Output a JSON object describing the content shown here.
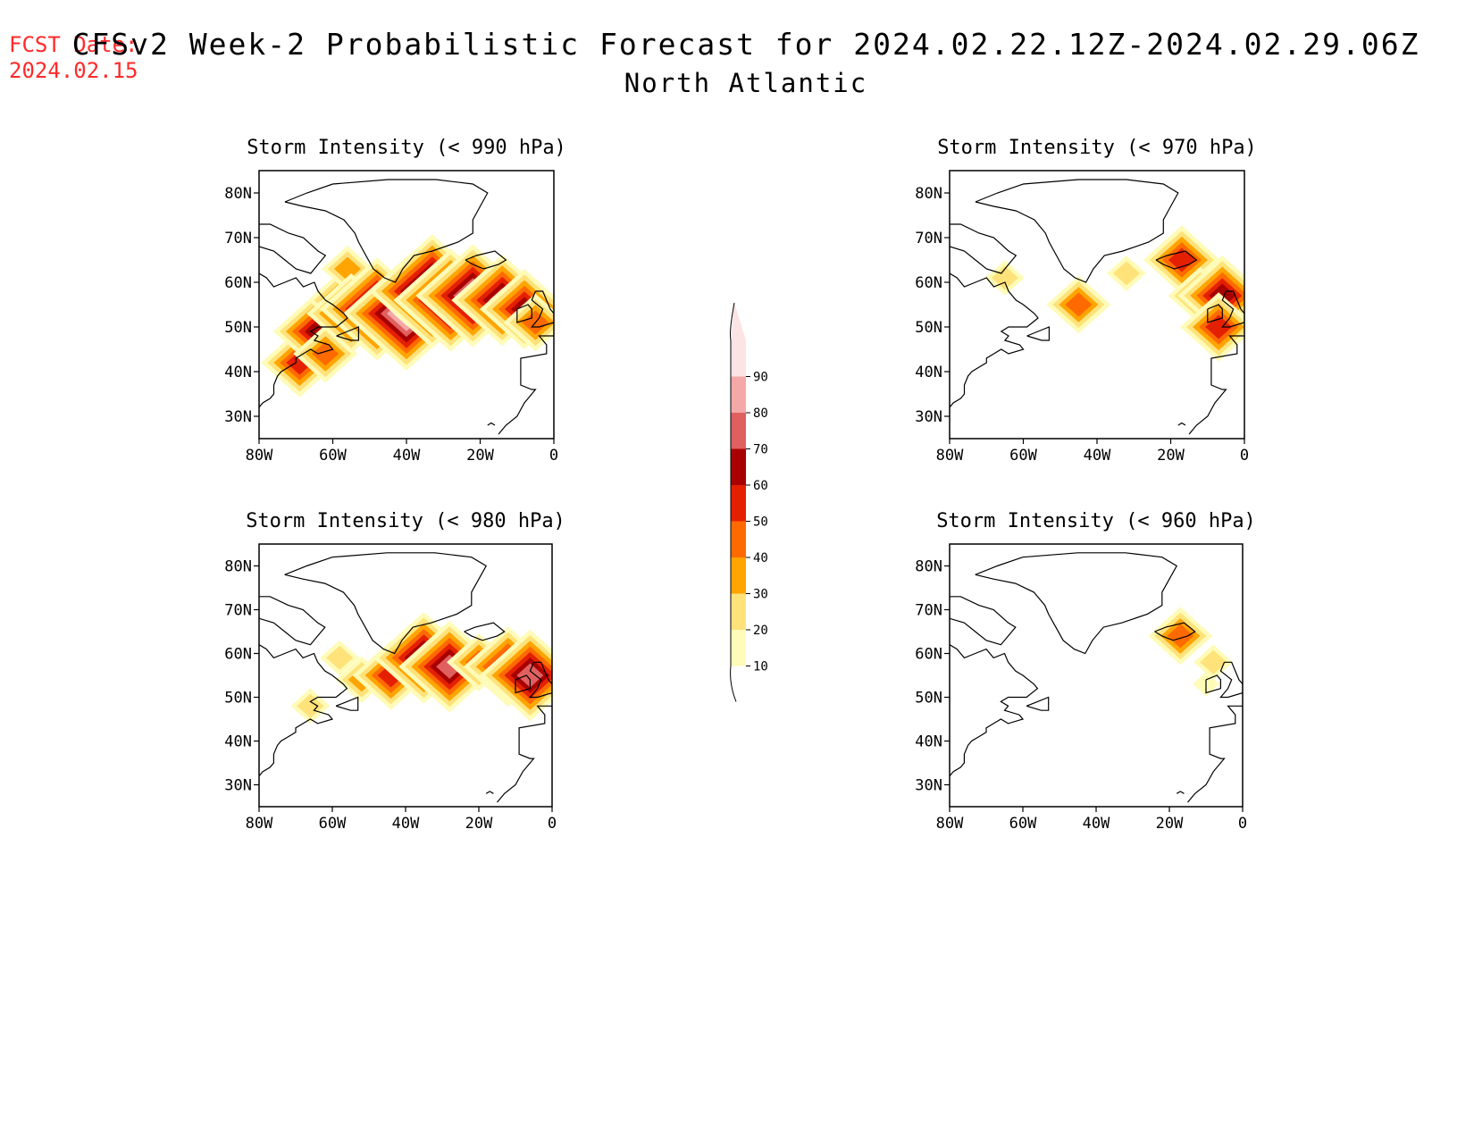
{
  "header": {
    "fcst_label": "FCST Date:",
    "fcst_date": "2024.02.15",
    "title": "CFSv2 Week-2 Probabilistic Forecast for 2024.02.22.12Z-2024.02.29.06Z",
    "subtitle": "North Atlantic"
  },
  "colorbar": {
    "levels": [
      10,
      20,
      30,
      40,
      50,
      60,
      70,
      80,
      90
    ],
    "labels": [
      "10",
      "20",
      "30",
      "40",
      "50",
      "60",
      "70",
      "80",
      "90"
    ],
    "colors": [
      "#fffbb8",
      "#ffe27a",
      "#ffa400",
      "#ff6a00",
      "#e42000",
      "#a80000",
      "#e06060",
      "#f4a8a8",
      "#fde4e4"
    ]
  },
  "axes": {
    "lon_ticks": [
      "80W",
      "60W",
      "40W",
      "20W",
      "0"
    ],
    "lat_ticks": [
      "80N",
      "70N",
      "60N",
      "50N",
      "40N",
      "30N"
    ]
  },
  "chart_data": [
    {
      "type": "heatmap",
      "title": "Storm Intensity (< 990 hPa)",
      "lon_range": [
        -80,
        0
      ],
      "lat_range": [
        25,
        85
      ],
      "patches": [
        {
          "lon": -69,
          "lat": 42,
          "value": 50
        },
        {
          "lon": -64,
          "lat": 49,
          "value": 60
        },
        {
          "lon": -62,
          "lat": 44,
          "value": 40
        },
        {
          "lon": -58,
          "lat": 56,
          "value": 40
        },
        {
          "lon": -56,
          "lat": 63,
          "value": 30
        },
        {
          "lon": -55,
          "lat": 53,
          "value": 60
        },
        {
          "lon": -48,
          "lat": 54,
          "value": 80
        },
        {
          "lon": -40,
          "lat": 53,
          "value": 90
        },
        {
          "lon": -33,
          "lat": 58,
          "value": 90
        },
        {
          "lon": -28,
          "lat": 56,
          "value": 80
        },
        {
          "lon": -22,
          "lat": 57,
          "value": 80
        },
        {
          "lon": -14,
          "lat": 56,
          "value": 70
        },
        {
          "lon": -8,
          "lat": 54,
          "value": 60
        },
        {
          "lon": -5,
          "lat": 51,
          "value": 40
        }
      ]
    },
    {
      "type": "heatmap",
      "title": "Storm Intensity (< 980 hPa)",
      "lon_range": [
        -80,
        0
      ],
      "lat_range": [
        25,
        85
      ],
      "patches": [
        {
          "lon": -66,
          "lat": 48,
          "value": 20
        },
        {
          "lon": -58,
          "lat": 59,
          "value": 20
        },
        {
          "lon": -52,
          "lat": 54,
          "value": 30
        },
        {
          "lon": -44,
          "lat": 55,
          "value": 50
        },
        {
          "lon": -35,
          "lat": 59,
          "value": 70
        },
        {
          "lon": -28,
          "lat": 57,
          "value": 70
        },
        {
          "lon": -20,
          "lat": 58,
          "value": 40
        },
        {
          "lon": -12,
          "lat": 57,
          "value": 60
        },
        {
          "lon": -6,
          "lat": 55,
          "value": 70
        }
      ]
    },
    {
      "type": "heatmap",
      "title": "Storm Intensity (< 970 hPa)",
      "lon_range": [
        -80,
        0
      ],
      "lat_range": [
        25,
        85
      ],
      "patches": [
        {
          "lon": -65,
          "lat": 61,
          "value": 20
        },
        {
          "lon": -45,
          "lat": 55,
          "value": 40
        },
        {
          "lon": -32,
          "lat": 62,
          "value": 20
        },
        {
          "lon": -17,
          "lat": 65,
          "value": 50
        },
        {
          "lon": -12,
          "lat": 57,
          "value": 40
        },
        {
          "lon": -6,
          "lat": 57,
          "value": 60
        },
        {
          "lon": -7,
          "lat": 50,
          "value": 50
        }
      ]
    },
    {
      "type": "heatmap",
      "title": "Storm Intensity (< 960 hPa)",
      "lon_range": [
        -80,
        0
      ],
      "lat_range": [
        25,
        85
      ],
      "patches": [
        {
          "lon": -17,
          "lat": 64,
          "value": 40
        },
        {
          "lon": -8,
          "lat": 58,
          "value": 20
        },
        {
          "lon": -10,
          "lat": 53,
          "value": 10
        }
      ]
    }
  ]
}
